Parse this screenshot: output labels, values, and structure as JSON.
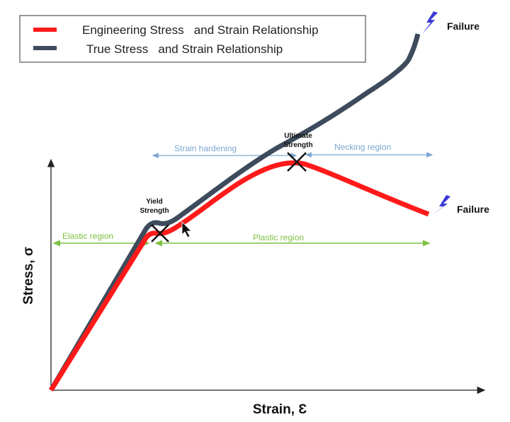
{
  "legend": {
    "items": [
      {
        "label": "Engineering Stress   and Strain Relationship",
        "color": "#ff1a1a"
      },
      {
        "label": "True Stress   and Strain Relationship",
        "color": "#3d4b5c"
      }
    ]
  },
  "axes": {
    "x_label": "Strain, Ɛ",
    "y_label": "Stress, σ"
  },
  "annotations": {
    "yield_line1": "Yield",
    "yield_line2": "Strength",
    "ultimate_line1": "Ultimate",
    "ultimate_line2": "Strength",
    "failure_true": "Failure",
    "failure_eng": "Failure",
    "elastic_region": "Elastic region",
    "plastic_region": "Plastic region",
    "strain_hardening": "Strain hardening",
    "necking_region": "Necking region"
  },
  "colors": {
    "engineering": "#ff1a1a",
    "true": "#3d4b5c",
    "region_green": "#7dc142",
    "region_blue": "#7ba7d0",
    "bolt": "#3b3bd6"
  }
}
